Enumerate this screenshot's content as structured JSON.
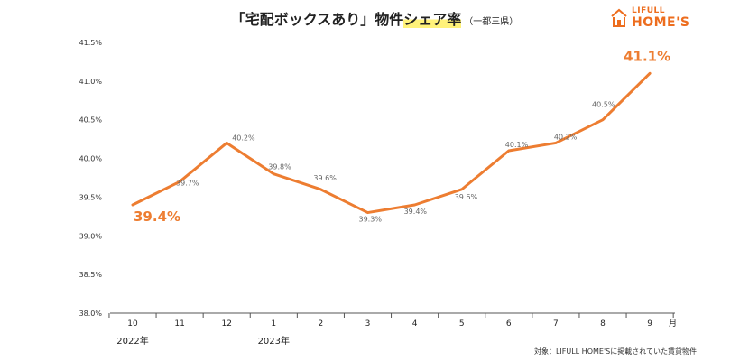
{
  "header": {
    "title_main": "「宅配ボックスあり」物件",
    "title_highlight": "シェア率",
    "title_sub": "（一都三県）"
  },
  "brand": {
    "logo_top": "LIFULL",
    "logo_bottom": "HOME'S",
    "color": "#ed6d1e"
  },
  "chart_data": {
    "type": "line",
    "title": "「宅配ボックスあり」物件シェア率（一都三県）",
    "categories": [
      "10",
      "11",
      "12",
      "1",
      "2",
      "3",
      "4",
      "5",
      "6",
      "7",
      "8",
      "9"
    ],
    "x_unit": "月",
    "year_labels": [
      {
        "category": "10",
        "label": "2022年"
      },
      {
        "category": "1",
        "label": "2023年"
      }
    ],
    "series": [
      {
        "values": [
          39.4,
          39.7,
          40.2,
          39.8,
          39.6,
          39.3,
          39.4,
          39.6,
          40.1,
          40.2,
          40.5,
          41.1
        ],
        "labels": [
          "39.4%",
          "39.7%",
          "40.2%",
          "39.8%",
          "39.6%",
          "39.3%",
          "39.4%",
          "39.6%",
          "40.1%",
          "40.2%",
          "40.5%",
          "41.1%"
        ],
        "highlight_indices": [
          0,
          11
        ],
        "color": "#ed7d31"
      }
    ],
    "ylim": [
      38.0,
      41.5
    ],
    "yticks": [
      38.0,
      38.5,
      39.0,
      39.5,
      40.0,
      40.5,
      41.0,
      41.5
    ],
    "ytick_labels": [
      "38.0%",
      "38.5%",
      "39.0%",
      "39.5%",
      "40.0%",
      "40.5%",
      "41.0%",
      "41.5%"
    ],
    "grid": false
  },
  "footnote": "対象：LIFULL HOME'Sに掲載されていた賃貸物件"
}
